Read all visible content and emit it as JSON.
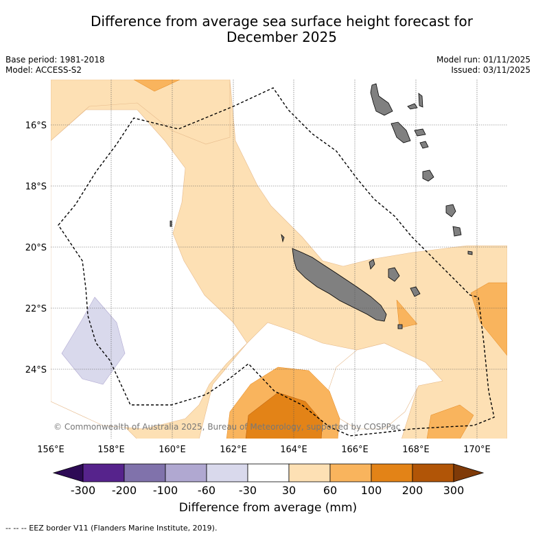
{
  "title_line1": "Difference from average sea surface height forecast for",
  "title_line2": "December 2025",
  "meta_left": {
    "base_period": "Base period: 1981-2018",
    "model": "Model: ACCESS-S2"
  },
  "meta_right": {
    "model_run": "Model run: 01/11/2025",
    "issued": "Issued: 03/11/2025"
  },
  "map": {
    "lat_labels": [
      "16°S",
      "18°S",
      "20°S",
      "22°S",
      "24°S"
    ],
    "lon_labels": [
      "156°E",
      "158°E",
      "160°E",
      "162°E",
      "164°E",
      "166°E",
      "168°E",
      "170°E"
    ],
    "copyright": "© Commonwealth of Australia 2025, Bureau of Meteorology, supported by COSPPac",
    "colors": {
      "land": "#808080",
      "c_30_60": "#fde0b4",
      "c_60_100": "#f9b45d",
      "c_100_200": "#e38317",
      "c_neg60_neg30": "#d9d9ec"
    }
  },
  "colorbar": {
    "ticks": [
      "-300",
      "-200",
      "-100",
      "-60",
      "-30",
      "30",
      "60",
      "100",
      "200",
      "300"
    ],
    "colors": [
      "#2d0a55",
      "#56238c",
      "#8072ab",
      "#b0a8d1",
      "#d9d9ec",
      "#ffffff",
      "#fde0b4",
      "#f9b45d",
      "#e38317",
      "#b15507",
      "#7f3a08"
    ],
    "label": "Difference from average (mm)"
  },
  "footer": "--  --  -- EEZ border V11 (Flanders Marine Institute, 2019)."
}
